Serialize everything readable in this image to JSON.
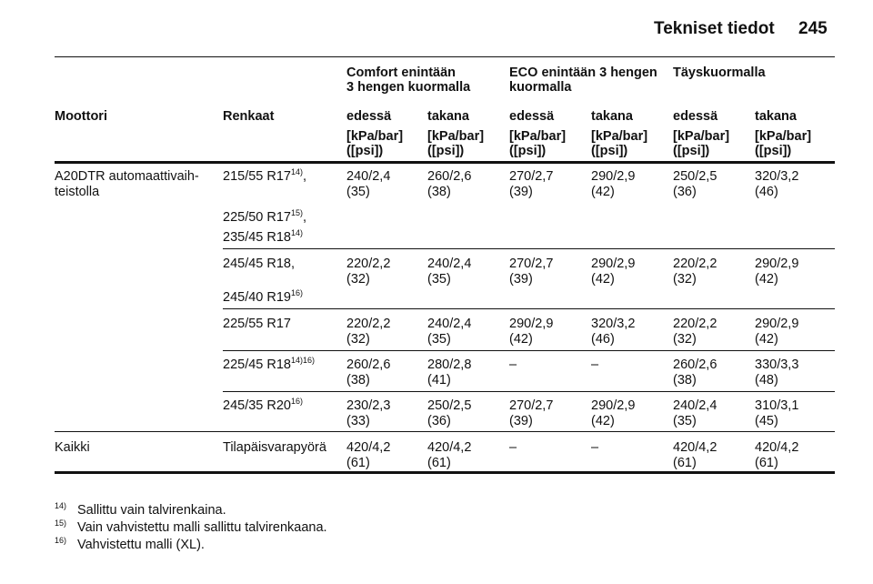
{
  "header": {
    "title": "Tekniset tiedot",
    "page": "245"
  },
  "table": {
    "group_headers": [
      [
        "Comfort enintään",
        "3 hengen kuormalla"
      ],
      [
        "ECO enintään 3 hengen",
        "kuormalla"
      ],
      [
        "Täyskuormalla"
      ]
    ],
    "columns": [
      "Moottori",
      "Renkaat",
      "edessä",
      "takana",
      "edessä",
      "takana",
      "edessä",
      "takana"
    ],
    "units": [
      [
        "[kPa/bar]",
        "([psi])"
      ],
      [
        "[kPa/bar]",
        "([psi])"
      ],
      [
        "[kPa/bar]",
        "([psi])"
      ],
      [
        "[kPa/bar]",
        "([psi])"
      ],
      [
        "[kPa/bar]",
        "([psi])"
      ],
      [
        "[kPa/bar]",
        "([psi])"
      ]
    ],
    "rows": [
      {
        "engine": [
          "A20DTR automaattivaih-",
          "teistolla"
        ],
        "tyres": [
          {
            "text": "215/55 R17",
            "note": "14)",
            "suffix": ","
          },
          {
            "text": "225/50 R17",
            "note": "15)",
            "suffix": ","
          },
          {
            "text": "235/45 R18",
            "note": "14)"
          }
        ],
        "values": [
          [
            "240/2,4",
            "(35)"
          ],
          [
            "260/2,6",
            "(38)"
          ],
          [
            "270/2,7",
            "(39)"
          ],
          [
            "290/2,9",
            "(42)"
          ],
          [
            "250/2,5",
            "(36)"
          ],
          [
            "320/3,2",
            "(46)"
          ]
        ]
      },
      {
        "tyres": [
          {
            "text": "245/45 R18,"
          },
          {
            "text": "245/40 R19",
            "note": "16)"
          }
        ],
        "values": [
          [
            "220/2,2",
            "(32)"
          ],
          [
            "240/2,4",
            "(35)"
          ],
          [
            "270/2,7",
            "(39)"
          ],
          [
            "290/2,9",
            "(42)"
          ],
          [
            "220/2,2",
            "(32)"
          ],
          [
            "290/2,9",
            "(42)"
          ]
        ]
      },
      {
        "tyres": [
          {
            "text": "225/55 R17"
          }
        ],
        "values": [
          [
            "220/2,2",
            "(32)"
          ],
          [
            "240/2,4",
            "(35)"
          ],
          [
            "290/2,9",
            "(42)"
          ],
          [
            "320/3,2",
            "(46)"
          ],
          [
            "220/2,2",
            "(32)"
          ],
          [
            "290/2,9",
            "(42)"
          ]
        ]
      },
      {
        "tyres": [
          {
            "text": "225/45 R18",
            "note": "14)16)"
          }
        ],
        "values": [
          [
            "260/2,6",
            "(38)"
          ],
          [
            "280/2,8",
            "(41)"
          ],
          [
            "–"
          ],
          [
            "–"
          ],
          [
            "260/2,6",
            "(38)"
          ],
          [
            "330/3,3",
            "(48)"
          ]
        ]
      },
      {
        "tyres": [
          {
            "text": "245/35 R20",
            "note": "16)"
          }
        ],
        "values": [
          [
            "230/2,3",
            "(33)"
          ],
          [
            "250/2,5",
            "(36)"
          ],
          [
            "270/2,7",
            "(39)"
          ],
          [
            "290/2,9",
            "(42)"
          ],
          [
            "240/2,4",
            "(35)"
          ],
          [
            "310/3,1",
            "(45)"
          ]
        ]
      },
      {
        "engine": [
          "Kaikki"
        ],
        "tyres": [
          {
            "text": "Tilapäisvarapyörä"
          }
        ],
        "values": [
          [
            "420/4,2",
            "(61)"
          ],
          [
            "420/4,2",
            "(61)"
          ],
          [
            "–"
          ],
          [
            "–"
          ],
          [
            "420/4,2",
            "(61)"
          ],
          [
            "420/4,2",
            "(61)"
          ]
        ]
      }
    ]
  },
  "footnotes": [
    {
      "mark": "14)",
      "text": "Sallittu vain talvirenkaina."
    },
    {
      "mark": "15)",
      "text": "Vain vahvistettu malli sallittu talvirenkaana."
    },
    {
      "mark": "16)",
      "text": "Vahvistettu malli (XL)."
    }
  ]
}
